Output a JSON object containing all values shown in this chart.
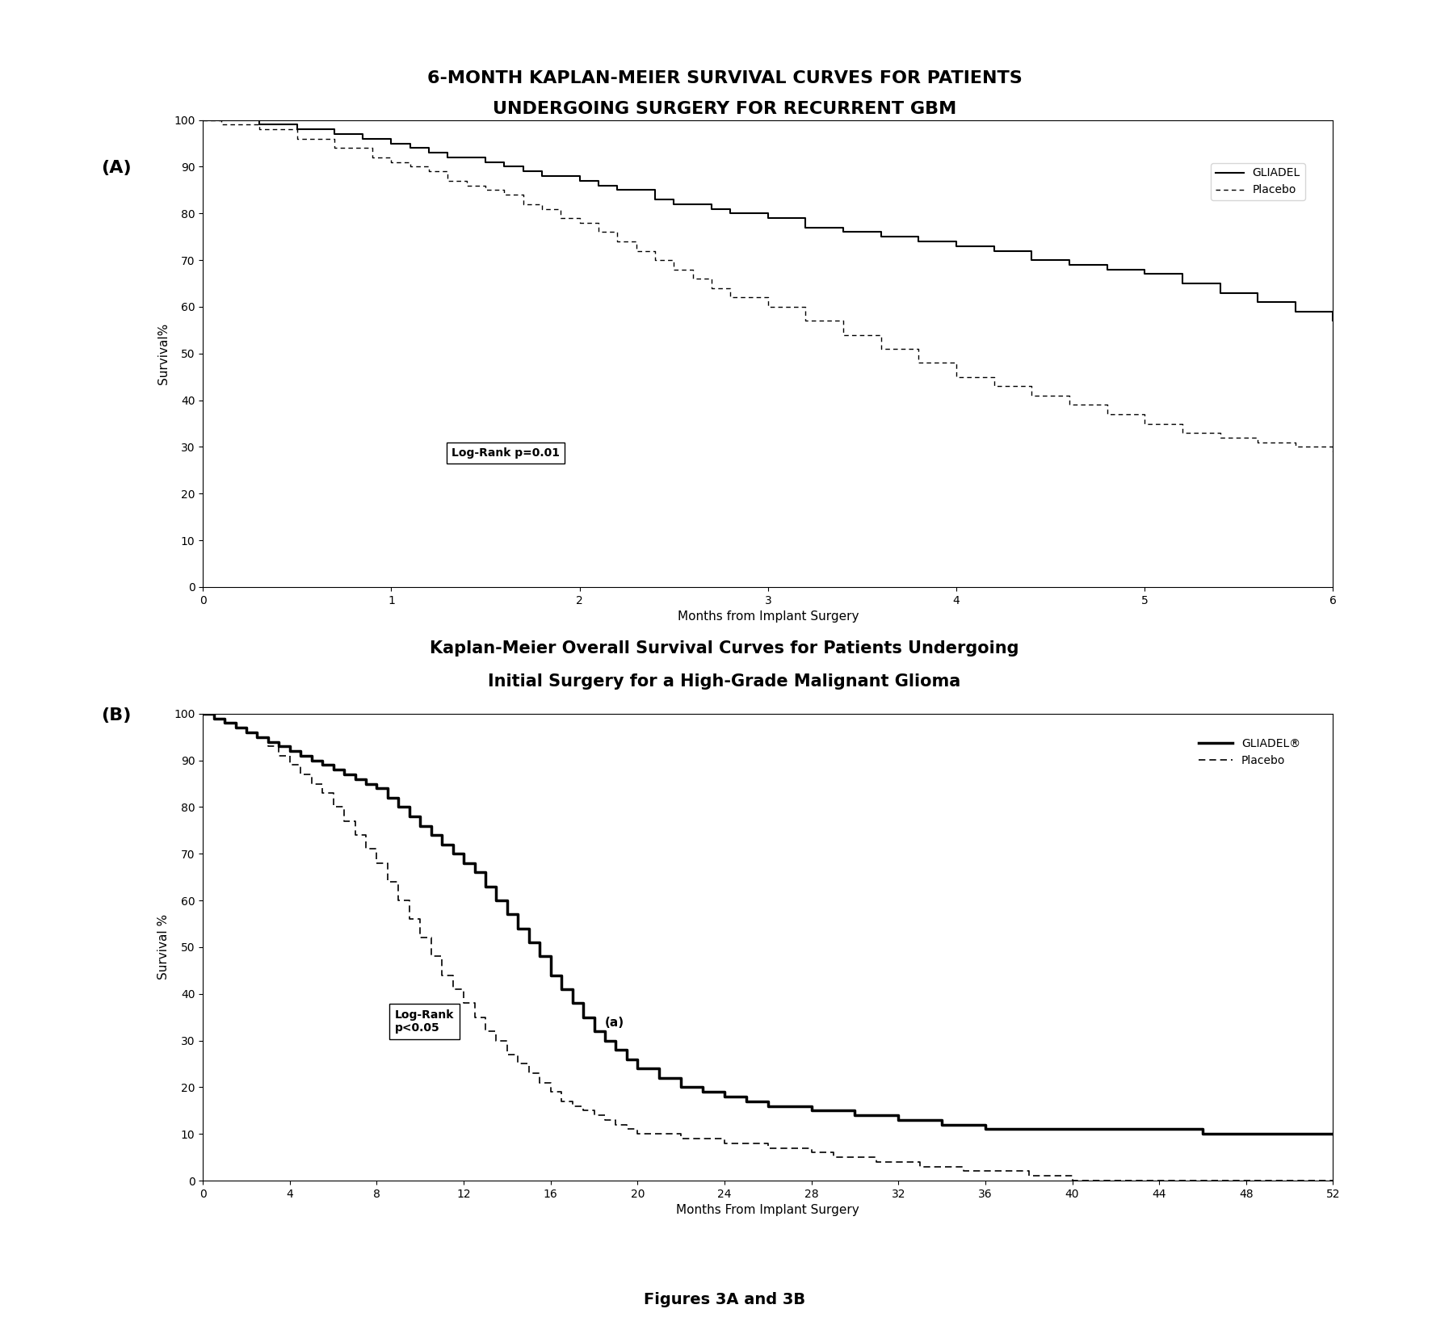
{
  "fig_title": "Figures 3A and 3B",
  "panel_A": {
    "title_line1": "6-MONTH KAPLAN-MEIER SURVIVAL CURVES FOR PATIENTS",
    "title_line2": "UNDERGOING SURGERY FOR RECURRENT GBM",
    "xlabel": "Months from Implant Surgery",
    "ylabel": "Survival%",
    "xlim": [
      0,
      6
    ],
    "ylim": [
      0,
      100
    ],
    "xticks": [
      0,
      1,
      2,
      3,
      4,
      5,
      6
    ],
    "yticks": [
      0,
      10,
      20,
      30,
      40,
      50,
      60,
      70,
      80,
      90,
      100
    ],
    "annotation": "Log-Rank p=0.01",
    "legend_gliadel": "GLIADEL",
    "legend_placebo": "Placebo",
    "gliadel_x": [
      0,
      0.05,
      0.3,
      0.5,
      0.7,
      0.85,
      1.0,
      1.1,
      1.2,
      1.3,
      1.5,
      1.6,
      1.7,
      1.8,
      2.0,
      2.1,
      2.2,
      2.4,
      2.5,
      2.7,
      2.8,
      3.0,
      3.2,
      3.4,
      3.6,
      3.8,
      4.0,
      4.2,
      4.4,
      4.6,
      4.8,
      5.0,
      5.2,
      5.4,
      5.6,
      5.8,
      6.0
    ],
    "gliadel_y": [
      100,
      100,
      99,
      98,
      97,
      96,
      95,
      94,
      93,
      92,
      91,
      90,
      89,
      88,
      87,
      86,
      85,
      83,
      82,
      81,
      80,
      79,
      77,
      76,
      75,
      74,
      73,
      72,
      70,
      69,
      68,
      67,
      65,
      63,
      61,
      59,
      57
    ],
    "placebo_x": [
      0,
      0.1,
      0.3,
      0.5,
      0.7,
      0.9,
      1.0,
      1.1,
      1.2,
      1.3,
      1.4,
      1.5,
      1.6,
      1.7,
      1.8,
      1.9,
      2.0,
      2.1,
      2.2,
      2.3,
      2.4,
      2.5,
      2.6,
      2.7,
      2.8,
      3.0,
      3.2,
      3.4,
      3.6,
      3.8,
      4.0,
      4.2,
      4.4,
      4.6,
      4.8,
      5.0,
      5.2,
      5.4,
      5.6,
      5.8,
      6.0
    ],
    "placebo_y": [
      100,
      99,
      98,
      96,
      94,
      92,
      91,
      90,
      89,
      87,
      86,
      85,
      84,
      82,
      81,
      79,
      78,
      76,
      74,
      72,
      70,
      68,
      66,
      64,
      62,
      60,
      57,
      54,
      51,
      48,
      45,
      43,
      41,
      39,
      37,
      35,
      33,
      32,
      31,
      30,
      29
    ]
  },
  "panel_B": {
    "title_line1": "Kaplan-Meier Overall Survival Curves for Patients Undergoing",
    "title_line2": "Initial Surgery for a High-Grade Malignant Glioma",
    "xlabel": "Months From Implant Surgery",
    "ylabel": "Survival %",
    "xlim": [
      0,
      52
    ],
    "ylim": [
      0,
      100
    ],
    "xticks": [
      0,
      4,
      8,
      12,
      16,
      20,
      24,
      28,
      32,
      36,
      40,
      44,
      48,
      52
    ],
    "yticks": [
      0,
      10,
      20,
      30,
      40,
      50,
      60,
      70,
      80,
      90,
      100
    ],
    "annotation": "Log-Rank\np<0.05",
    "legend_gliadel": "GLIADEL®",
    "legend_placebo": "Placebo",
    "gliadel_x": [
      0,
      0.5,
      1,
      1.5,
      2,
      2.5,
      3,
      3.5,
      4,
      4.5,
      5,
      5.5,
      6,
      6.5,
      7,
      7.5,
      8,
      8.5,
      9,
      9.5,
      10,
      10.5,
      11,
      11.5,
      12,
      12.5,
      13,
      13.5,
      14,
      14.5,
      15,
      15.5,
      16,
      16.5,
      17,
      17.5,
      18,
      18.5,
      19,
      19.5,
      20,
      21,
      22,
      23,
      24,
      25,
      26,
      27,
      28,
      29,
      30,
      31,
      32,
      33,
      34,
      35,
      36,
      38,
      40,
      42,
      44,
      46,
      48,
      50,
      52
    ],
    "gliadel_y": [
      100,
      99,
      98,
      97,
      96,
      95,
      94,
      93,
      92,
      91,
      90,
      89,
      88,
      87,
      86,
      85,
      84,
      82,
      80,
      78,
      76,
      74,
      72,
      70,
      68,
      66,
      63,
      60,
      57,
      54,
      51,
      48,
      44,
      41,
      38,
      35,
      32,
      30,
      28,
      26,
      24,
      22,
      20,
      19,
      18,
      17,
      16,
      16,
      15,
      15,
      14,
      14,
      13,
      13,
      12,
      12,
      11,
      11,
      11,
      11,
      11,
      10,
      10,
      10,
      10
    ],
    "placebo_x": [
      0,
      0.5,
      1,
      1.5,
      2,
      2.5,
      3,
      3.5,
      4,
      4.5,
      5,
      5.5,
      6,
      6.5,
      7,
      7.5,
      8,
      8.5,
      9,
      9.5,
      10,
      10.5,
      11,
      11.5,
      12,
      12.5,
      13,
      13.5,
      14,
      14.5,
      15,
      15.5,
      16,
      16.5,
      17,
      17.5,
      18,
      18.5,
      19,
      19.5,
      20,
      21,
      22,
      23,
      24,
      25,
      26,
      27,
      28,
      29,
      30,
      31,
      32,
      33,
      34,
      35,
      36,
      38,
      40,
      42,
      44,
      46,
      48,
      50,
      52
    ],
    "placebo_y": [
      100,
      99,
      98,
      97,
      96,
      95,
      93,
      91,
      89,
      87,
      85,
      83,
      80,
      77,
      74,
      71,
      68,
      64,
      60,
      56,
      52,
      48,
      44,
      41,
      38,
      35,
      32,
      30,
      27,
      25,
      23,
      21,
      19,
      17,
      16,
      15,
      14,
      13,
      12,
      11,
      10,
      10,
      9,
      9,
      8,
      8,
      7,
      7,
      6,
      5,
      5,
      4,
      4,
      3,
      3,
      2,
      2,
      1,
      0,
      0,
      0,
      0,
      0,
      0,
      0
    ]
  }
}
